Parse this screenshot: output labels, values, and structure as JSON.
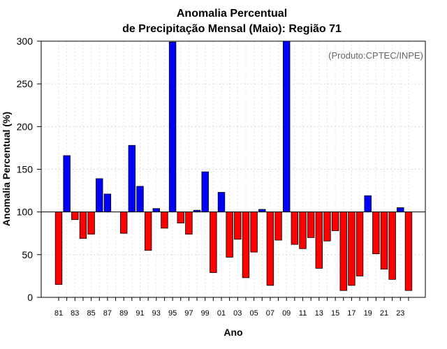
{
  "chart_data": {
    "type": "bar",
    "title_line1": "Anomalia Percentual",
    "title_line2": "de Precipitação Mensal (Maio): Região 71",
    "xlabel": "Ano",
    "ylabel": "Anomalia Percentual (%)",
    "note": "(Produto:CPTEC/INPE)",
    "ylim": [
      0,
      300
    ],
    "baseline": 100,
    "yticks": [
      "0",
      "50",
      "100",
      "150",
      "200",
      "250",
      "300"
    ],
    "colors": {
      "above": "#0000ff",
      "below": "#ff0000"
    },
    "categories": [
      "81",
      "82",
      "83",
      "84",
      "85",
      "86",
      "87",
      "88",
      "89",
      "90",
      "91",
      "92",
      "93",
      "94",
      "95",
      "96",
      "97",
      "98",
      "99",
      "00",
      "01",
      "02",
      "03",
      "04",
      "05",
      "06",
      "07",
      "08",
      "09",
      "10",
      "11",
      "12",
      "13",
      "14",
      "15",
      "16",
      "17",
      "18",
      "19",
      "20",
      "21",
      "22",
      "23",
      "24"
    ],
    "xtick_labels": [
      "81",
      "83",
      "85",
      "87",
      "89",
      "91",
      "93",
      "95",
      "97",
      "99",
      "01",
      "03",
      "05",
      "07",
      "09",
      "11",
      "13",
      "15",
      "17",
      "19",
      "21",
      "23"
    ],
    "values": [
      15,
      166,
      91,
      69,
      74,
      139,
      121,
      100,
      75,
      178,
      130,
      55,
      104,
      81,
      299,
      87,
      74,
      102,
      147,
      29,
      123,
      47,
      68,
      23,
      53,
      103,
      14,
      67,
      300,
      62,
      57,
      70,
      34,
      66,
      78,
      8,
      14,
      25,
      119,
      51,
      33,
      21,
      105,
      8
    ]
  }
}
